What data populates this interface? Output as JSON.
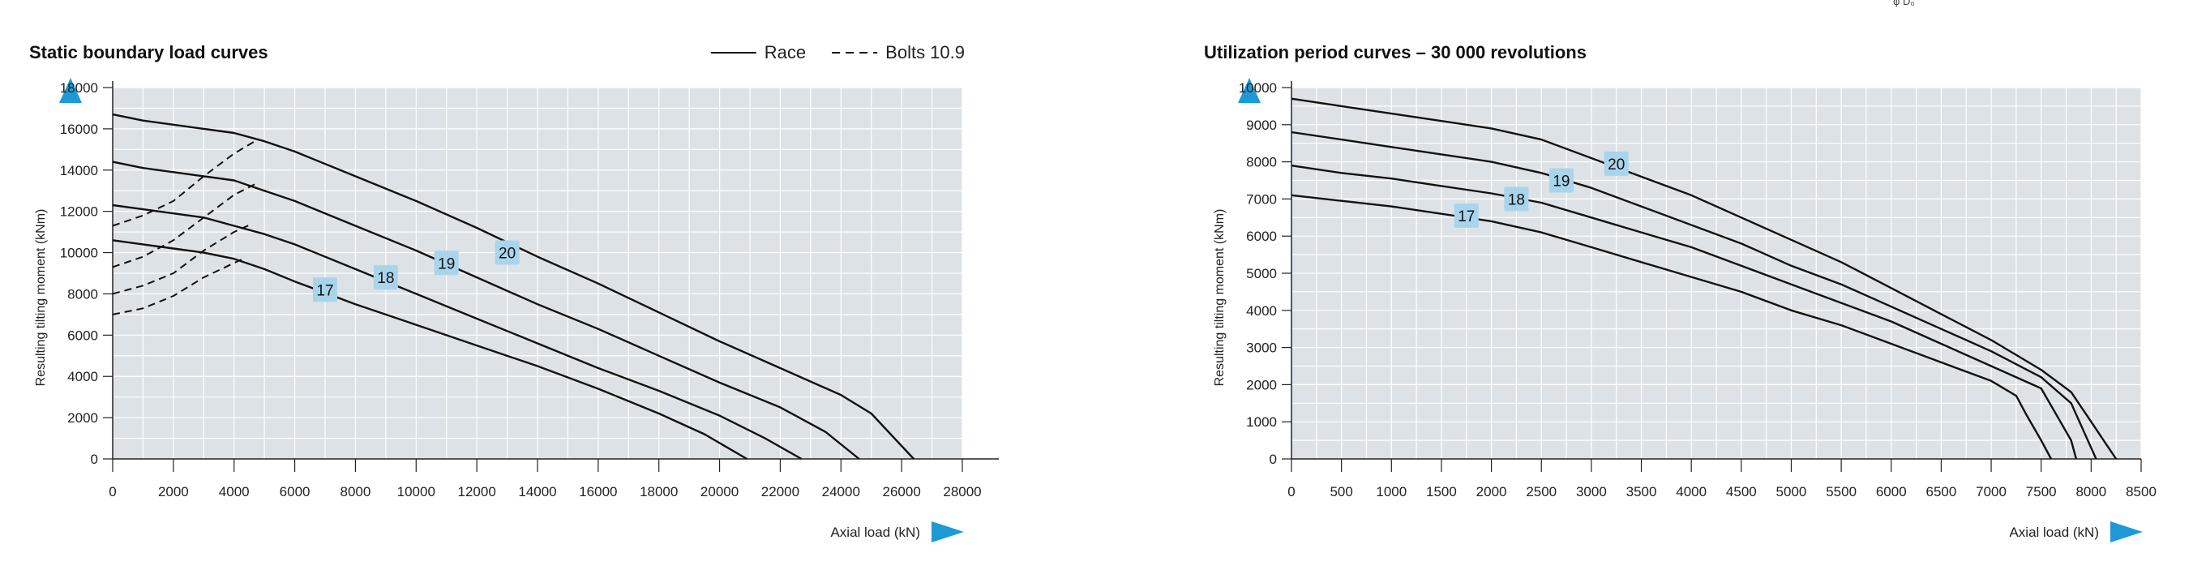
{
  "header_fragment": "φ  D₀",
  "chart_data": [
    {
      "type": "line",
      "title": "Static boundary load curves",
      "xlabel": "Axial load (kN)",
      "ylabel": "Resulting tilting moment (kNm)",
      "xlim": [
        0,
        28000
      ],
      "ylim": [
        0,
        18000
      ],
      "xticks": [
        0,
        2000,
        4000,
        6000,
        8000,
        10000,
        12000,
        14000,
        16000,
        18000,
        20000,
        22000,
        24000,
        26000,
        28000
      ],
      "yticks": [
        0,
        2000,
        4000,
        6000,
        8000,
        10000,
        12000,
        14000,
        16000,
        18000
      ],
      "grid": true,
      "legend": [
        {
          "label": "Race",
          "style": "solid"
        },
        {
          "label": "Bolts 10.9",
          "style": "dashed"
        }
      ],
      "legend_position": "top-right",
      "series": [
        {
          "name": "20",
          "style": "solid",
          "label_at": [
            13000,
            10000
          ],
          "points": [
            [
              0,
              16700
            ],
            [
              1000,
              16400
            ],
            [
              2000,
              16200
            ],
            [
              3000,
              16000
            ],
            [
              4000,
              15800
            ],
            [
              5000,
              15400
            ],
            [
              6000,
              14900
            ],
            [
              8000,
              13700
            ],
            [
              10000,
              12500
            ],
            [
              12000,
              11200
            ],
            [
              14000,
              9800
            ],
            [
              16000,
              8500
            ],
            [
              18000,
              7100
            ],
            [
              20000,
              5700
            ],
            [
              22000,
              4400
            ],
            [
              24000,
              3100
            ],
            [
              25000,
              2200
            ],
            [
              26400,
              0
            ]
          ]
        },
        {
          "name": "19",
          "style": "solid",
          "label_at": [
            11000,
            9500
          ],
          "points": [
            [
              0,
              14400
            ],
            [
              1000,
              14100
            ],
            [
              2000,
              13900
            ],
            [
              3000,
              13700
            ],
            [
              4000,
              13500
            ],
            [
              5000,
              13000
            ],
            [
              6000,
              12500
            ],
            [
              8000,
              11300
            ],
            [
              10000,
              10100
            ],
            [
              12000,
              8800
            ],
            [
              14000,
              7500
            ],
            [
              16000,
              6300
            ],
            [
              18000,
              5000
            ],
            [
              20000,
              3700
            ],
            [
              22000,
              2500
            ],
            [
              23500,
              1300
            ],
            [
              24600,
              0
            ]
          ]
        },
        {
          "name": "18",
          "style": "solid",
          "label_at": [
            9000,
            8800
          ],
          "points": [
            [
              0,
              12300
            ],
            [
              1000,
              12100
            ],
            [
              2000,
              11900
            ],
            [
              3000,
              11700
            ],
            [
              4000,
              11300
            ],
            [
              5000,
              10900
            ],
            [
              6000,
              10400
            ],
            [
              8000,
              9200
            ],
            [
              10000,
              8000
            ],
            [
              12000,
              6800
            ],
            [
              14000,
              5600
            ],
            [
              16000,
              4400
            ],
            [
              18000,
              3300
            ],
            [
              20000,
              2100
            ],
            [
              21500,
              1000
            ],
            [
              22700,
              0
            ]
          ]
        },
        {
          "name": "17",
          "style": "solid",
          "label_at": [
            7000,
            8200
          ],
          "points": [
            [
              0,
              10600
            ],
            [
              1000,
              10400
            ],
            [
              2000,
              10200
            ],
            [
              3000,
              10000
            ],
            [
              4000,
              9700
            ],
            [
              5000,
              9200
            ],
            [
              6000,
              8600
            ],
            [
              8000,
              7500
            ],
            [
              10000,
              6500
            ],
            [
              12000,
              5500
            ],
            [
              14000,
              4500
            ],
            [
              16000,
              3400
            ],
            [
              18000,
              2200
            ],
            [
              19500,
              1200
            ],
            [
              20900,
              0
            ]
          ]
        },
        {
          "name": "Bolts 20",
          "style": "dashed",
          "points": [
            [
              0,
              11300
            ],
            [
              1000,
              11800
            ],
            [
              2000,
              12500
            ],
            [
              3000,
              13700
            ],
            [
              4000,
              14800
            ],
            [
              4800,
              15500
            ]
          ]
        },
        {
          "name": "Bolts 19",
          "style": "dashed",
          "points": [
            [
              0,
              9300
            ],
            [
              1000,
              9800
            ],
            [
              2000,
              10600
            ],
            [
              3000,
              11700
            ],
            [
              4000,
              12800
            ],
            [
              4800,
              13400
            ]
          ]
        },
        {
          "name": "Bolts 18",
          "style": "dashed",
          "points": [
            [
              0,
              8000
            ],
            [
              1000,
              8400
            ],
            [
              2000,
              9000
            ],
            [
              3000,
              10100
            ],
            [
              4000,
              11000
            ],
            [
              4600,
              11400
            ]
          ]
        },
        {
          "name": "Bolts 17",
          "style": "dashed",
          "points": [
            [
              0,
              7000
            ],
            [
              1000,
              7300
            ],
            [
              2000,
              7900
            ],
            [
              3000,
              8800
            ],
            [
              4000,
              9500
            ],
            [
              4300,
              9700
            ]
          ]
        }
      ]
    },
    {
      "type": "line",
      "title": "Utilization period curves – 30 000 revolutions",
      "xlabel": "Axial load (kN)",
      "ylabel": "Resulting tilting moment (kNm)",
      "xlim": [
        0,
        8500
      ],
      "ylim": [
        0,
        10000
      ],
      "xticks": [
        0,
        500,
        1000,
        1500,
        2000,
        2500,
        3000,
        3500,
        4000,
        4500,
        5000,
        5500,
        6000,
        6500,
        7000,
        7500,
        8000,
        8500
      ],
      "yticks": [
        0,
        1000,
        2000,
        3000,
        4000,
        5000,
        6000,
        7000,
        8000,
        9000,
        10000
      ],
      "grid": true,
      "series": [
        {
          "name": "20",
          "style": "solid",
          "label_at": [
            3250,
            7950
          ],
          "points": [
            [
              0,
              9700
            ],
            [
              500,
              9500
            ],
            [
              1000,
              9300
            ],
            [
              1500,
              9100
            ],
            [
              2000,
              8900
            ],
            [
              2500,
              8600
            ],
            [
              3000,
              8100
            ],
            [
              3500,
              7600
            ],
            [
              4000,
              7100
            ],
            [
              4500,
              6500
            ],
            [
              5000,
              5900
            ],
            [
              5500,
              5300
            ],
            [
              6000,
              4600
            ],
            [
              6500,
              3900
            ],
            [
              7000,
              3200
            ],
            [
              7500,
              2400
            ],
            [
              7800,
              1800
            ],
            [
              8000,
              1000
            ],
            [
              8150,
              400
            ],
            [
              8250,
              0
            ]
          ]
        },
        {
          "name": "19",
          "style": "solid",
          "label_at": [
            2700,
            7500
          ],
          "points": [
            [
              0,
              8800
            ],
            [
              500,
              8600
            ],
            [
              1000,
              8400
            ],
            [
              1500,
              8200
            ],
            [
              2000,
              8000
            ],
            [
              2500,
              7700
            ],
            [
              3000,
              7300
            ],
            [
              3500,
              6800
            ],
            [
              4000,
              6300
            ],
            [
              4500,
              5800
            ],
            [
              5000,
              5200
            ],
            [
              5500,
              4700
            ],
            [
              6000,
              4100
            ],
            [
              6500,
              3500
            ],
            [
              7000,
              2900
            ],
            [
              7500,
              2200
            ],
            [
              7800,
              1500
            ],
            [
              7900,
              900
            ],
            [
              8050,
              0
            ]
          ]
        },
        {
          "name": "18",
          "style": "solid",
          "label_at": [
            2250,
            7000
          ],
          "points": [
            [
              0,
              7900
            ],
            [
              500,
              7700
            ],
            [
              1000,
              7550
            ],
            [
              1500,
              7350
            ],
            [
              2000,
              7150
            ],
            [
              2500,
              6900
            ],
            [
              3000,
              6500
            ],
            [
              3500,
              6100
            ],
            [
              4000,
              5700
            ],
            [
              4500,
              5200
            ],
            [
              5000,
              4700
            ],
            [
              5500,
              4200
            ],
            [
              6000,
              3700
            ],
            [
              6500,
              3100
            ],
            [
              7000,
              2500
            ],
            [
              7500,
              1900
            ],
            [
              7650,
              1200
            ],
            [
              7800,
              500
            ],
            [
              7850,
              0
            ]
          ]
        },
        {
          "name": "17",
          "style": "solid",
          "label_at": [
            1750,
            6550
          ],
          "points": [
            [
              0,
              7100
            ],
            [
              500,
              6950
            ],
            [
              1000,
              6800
            ],
            [
              1500,
              6600
            ],
            [
              2000,
              6400
            ],
            [
              2500,
              6100
            ],
            [
              3000,
              5700
            ],
            [
              3500,
              5300
            ],
            [
              4000,
              4900
            ],
            [
              4500,
              4500
            ],
            [
              5000,
              4000
            ],
            [
              5500,
              3600
            ],
            [
              6000,
              3100
            ],
            [
              6500,
              2600
            ],
            [
              7000,
              2100
            ],
            [
              7250,
              1700
            ],
            [
              7350,
              1200
            ],
            [
              7500,
              500
            ],
            [
              7600,
              0
            ]
          ]
        }
      ]
    }
  ]
}
